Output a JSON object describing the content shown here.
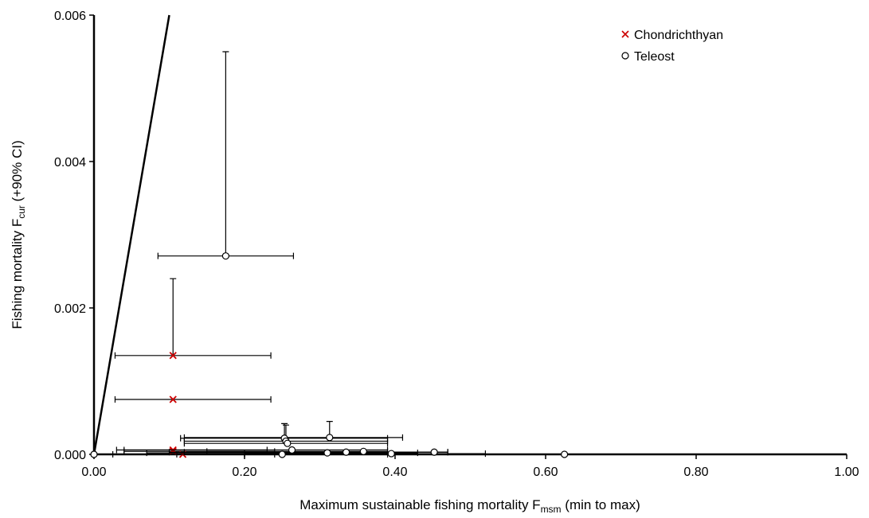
{
  "chart_data": {
    "type": "scatter",
    "x_label": {
      "text": "Maximum sustainable fishing mortality F",
      "sub": "msm",
      "after": " (min to max)"
    },
    "y_label": {
      "text": "Fishing mortality F",
      "sub": "cur",
      "after": " (+90% CI)"
    },
    "xlim": [
      0,
      1
    ],
    "ylim": [
      0,
      0.006
    ],
    "xticks": [
      {
        "value": 0,
        "label": "0.00"
      },
      {
        "value": 0.2,
        "label": "0.20"
      },
      {
        "value": 0.4,
        "label": "0.40"
      },
      {
        "value": 0.6,
        "label": "0.60"
      },
      {
        "value": 0.8,
        "label": "0.80"
      },
      {
        "value": 1,
        "label": "1.00"
      }
    ],
    "yticks": [
      {
        "value": 0,
        "label": "0.000"
      },
      {
        "value": 0.002,
        "label": "0.002"
      },
      {
        "value": 0.004,
        "label": "0.004"
      },
      {
        "value": 0.006,
        "label": "0.006"
      }
    ],
    "reference_line": {
      "x": [
        0,
        0.1
      ],
      "y": [
        0,
        0.006
      ]
    },
    "legend_position": "upper right",
    "series": [
      {
        "name": "Chondrichthyan",
        "color": "#cc0000",
        "marker": "x",
        "x": [
          0.105,
          0.105,
          0.105,
          0.105,
          0.118
        ],
        "values": [
          0.00135,
          0.00075,
          6e-05,
          4e-05,
          0.0
        ],
        "x_low": [
          0.028,
          0.028,
          0.03,
          0.04,
          0.11
        ],
        "x_high": [
          0.235,
          0.235,
          0.23,
          0.24,
          0.24
        ],
        "y_high": [
          0.0024,
          null,
          null,
          null,
          null
        ]
      },
      {
        "name": "Teleost",
        "color": "#000000",
        "marker": "o",
        "x": [
          0.0,
          0.175,
          0.253,
          0.255,
          0.257,
          0.313,
          0.263,
          0.25,
          0.31,
          0.335,
          0.358,
          0.395,
          0.452,
          0.625
        ],
        "values": [
          0.0,
          0.00271,
          0.00022,
          0.00018,
          0.00015,
          0.00023,
          6e-05,
          0.0,
          2e-05,
          3e-05,
          4e-05,
          1e-05,
          3e-05,
          0.0
        ],
        "x_low": [
          null,
          0.085,
          0.115,
          0.12,
          0.12,
          0.12,
          0.04,
          0.025,
          0.07,
          0.1,
          0.15,
          0.2,
          0.12,
          0.2
        ],
        "x_high": [
          null,
          0.265,
          0.39,
          0.39,
          0.39,
          0.41,
          0.39,
          0.39,
          0.43,
          0.47,
          0.39,
          0.52,
          0.47,
          0.625
        ],
        "y_high": [
          null,
          0.0055,
          0.00042,
          0.0004,
          null,
          0.00045,
          null,
          null,
          null,
          null,
          null,
          null,
          null,
          null
        ]
      }
    ]
  }
}
